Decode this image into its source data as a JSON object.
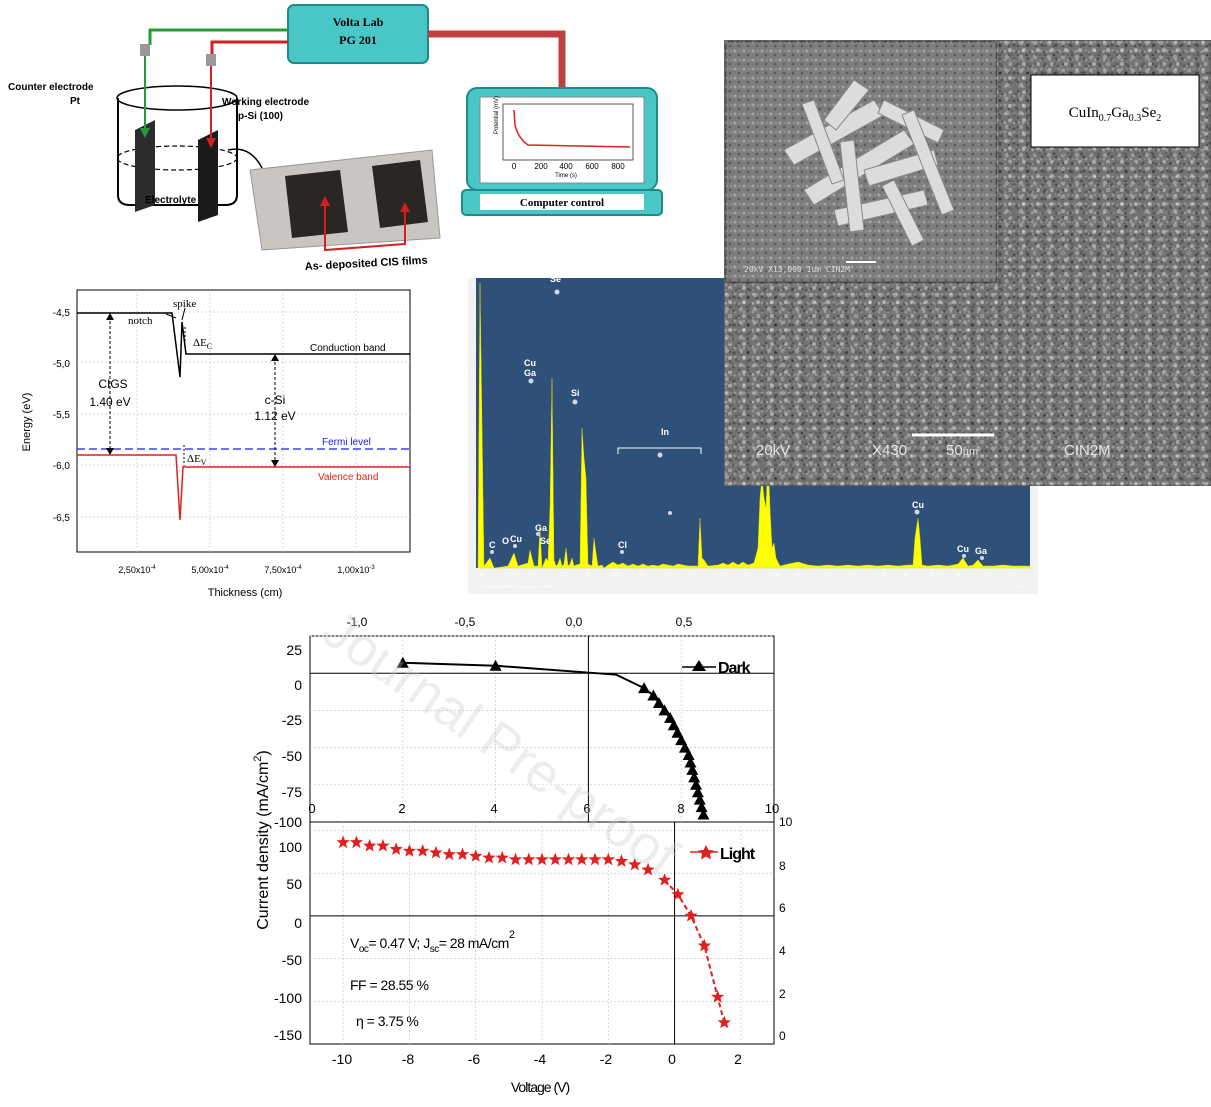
{
  "setup": {
    "device_label": "Volta Lab",
    "device_model": "PG 201",
    "counter_electrode": "Counter electrode",
    "counter_electrode_material": "Pt",
    "working_electrode": "Working electrode",
    "working_electrode_material": "p-Si (100)",
    "electrolyte": "Electrolyte",
    "films": "As- deposited CIS films",
    "computer": "Computer control",
    "inset_ylabel": "Potential (mV)",
    "inset_xlabel": "Time (s)",
    "inset_ticks": [
      "0",
      "200",
      "400",
      "600",
      "800"
    ]
  },
  "sem": {
    "formula": "CuIn0.7Ga0.3Se2",
    "formula_parts": {
      "base1": "CuIn",
      "sub1": "0.7",
      "base2": "Ga",
      "sub2": "0.3",
      "base3": "Se",
      "sub3": "2"
    },
    "inset_bar": "20kV  X13,000  1um  CIN2M",
    "main_bar_kv": "20kV",
    "main_bar_mag": "X430",
    "main_bar_scale": "50",
    "main_bar_unit": "µm",
    "main_bar_lab": "CIN2M"
  },
  "band": {
    "ylabel": "Energy (eV)",
    "xlabel": "Thickness (cm)",
    "yticks": [
      "-4,5",
      "-5,0",
      "-5,5",
      "-6,0",
      "-6,5"
    ],
    "xticks": [
      "2,50x10",
      "5,00x10",
      "7,50x10",
      "1,00x10"
    ],
    "xtick_exp": [
      "-4",
      "-4",
      "-4",
      "-3"
    ],
    "labels": {
      "spike": "spike",
      "notch": "notch",
      "dEc": "ΔE",
      "dEc_sub": "C",
      "conduction": "Conduction band",
      "cigs": "CIGS",
      "cigs_gap": "1.40 eV",
      "csi": "c-Si",
      "csi_gap": "1.12 eV",
      "fermi": "Fermi level",
      "dEv": "ΔE",
      "dEv_sub": "V",
      "valence": "Valence band"
    }
  },
  "eds": {
    "peaks": [
      "Se",
      "Cu",
      "Ga",
      "Si",
      "In",
      "C",
      "O",
      "Cu",
      "Ga",
      "Se",
      "Cl",
      "Cu",
      "Cu",
      "Ga"
    ],
    "xticks": [
      "0",
      "0.5",
      "1",
      "1.5",
      "2",
      "2.5",
      "3",
      "3.5",
      "4",
      "4.5",
      "5",
      "5.5",
      "6",
      "6.5",
      "7",
      "7.5",
      "8",
      "8.5",
      "9",
      "9.5",
      "10"
    ],
    "footer": "Pleine échelle 6735 cps  Curseur : 0.000",
    "unit": "keV",
    "colors": {
      "bg": "#2f5078",
      "peak": "#ffff00"
    }
  },
  "chart_data": [
    {
      "type": "line",
      "name": "Dark",
      "ylabel": "Current density (mA/cm2)",
      "top_axis_ticks": [
        "-1,0",
        "-0,5",
        "0,0",
        "0,5"
      ],
      "mid_axis_ticks": [
        "0",
        "2",
        "4",
        "6",
        "8",
        "10"
      ],
      "y_ticks": [
        "25",
        "0",
        "-25",
        "-50",
        "-75",
        "-100"
      ],
      "ylim": [
        -100,
        25
      ],
      "xlim": [
        -1.5,
        1.0
      ],
      "legend": "Dark",
      "x": [
        -1.0,
        -0.5,
        0.15,
        0.3,
        0.35,
        0.38,
        0.41,
        0.44,
        0.46,
        0.48,
        0.5,
        0.52,
        0.54,
        0.55,
        0.56,
        0.57,
        0.58,
        0.59,
        0.6,
        0.61,
        0.62
      ],
      "y": [
        7,
        5,
        -1,
        -10,
        -15,
        -20,
        -25,
        -30,
        -35,
        -40,
        -45,
        -50,
        -55,
        -60,
        -65,
        -70,
        -75,
        -80,
        -85,
        -90,
        -95
      ]
    },
    {
      "type": "scatter",
      "name": "Light",
      "xlabel": "Voltage (V)",
      "ylabel": "Current density (mA/cm2)",
      "x_ticks": [
        "-10",
        "-8",
        "-6",
        "-4",
        "-2",
        "0",
        "2"
      ],
      "y_ticks": [
        "100",
        "50",
        "0",
        "-50",
        "-100",
        "-150"
      ],
      "right_ticks": [
        "10",
        "8",
        "6",
        "4",
        "2",
        "0"
      ],
      "xlim": [
        -11,
        3
      ],
      "ylim": [
        -150,
        110
      ],
      "legend": "Light",
      "x": [
        -10,
        -9.6,
        -9.2,
        -8.8,
        -8.4,
        -8.0,
        -7.6,
        -7.2,
        -6.8,
        -6.4,
        -6.0,
        -5.6,
        -5.2,
        -4.8,
        -4.4,
        -4.0,
        -3.6,
        -3.2,
        -2.8,
        -2.4,
        -2.0,
        -1.6,
        -1.2,
        -0.8,
        -0.3,
        0.1,
        0.5,
        0.9,
        1.3,
        1.5
      ],
      "y": [
        86,
        86,
        82,
        82,
        78,
        76,
        76,
        74,
        72,
        72,
        70,
        68,
        68,
        66,
        66,
        66,
        66,
        66,
        66,
        66,
        66,
        64,
        60,
        54,
        42,
        25,
        0,
        -35,
        -95,
        -125
      ],
      "annotations": {
        "voc": "V",
        "voc_sub": "oc",
        "voc_val": "= 0.47 V; J",
        "jsc_sub": "sc",
        "jsc_val": "= 28 mA/cm",
        "jsc_sup": "2",
        "ff": "FF = 28.55 %",
        "eta": "η = 3.75 %"
      }
    }
  ],
  "watermark": "Journal Pre-proof"
}
